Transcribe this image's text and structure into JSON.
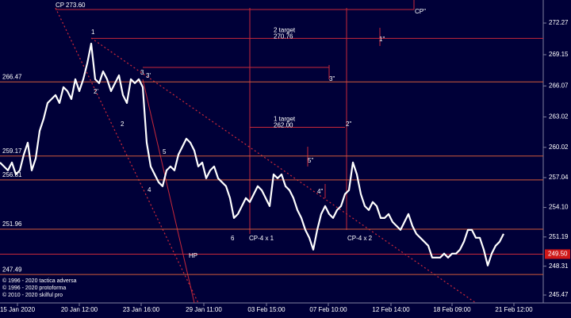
{
  "chart_data": {
    "type": "line",
    "x": [
      0,
      1,
      2,
      3,
      4,
      5,
      6,
      7,
      8,
      9,
      10,
      11,
      12,
      13,
      14,
      15,
      16,
      17,
      18,
      19,
      20,
      21,
      22,
      23,
      24,
      25,
      26,
      27,
      28,
      29,
      30,
      31,
      32,
      33,
      34,
      35,
      36,
      37,
      38,
      39,
      40,
      41,
      42,
      43,
      44,
      45,
      46,
      47,
      48,
      49,
      50,
      51,
      52,
      53,
      54,
      55,
      56,
      57,
      58,
      59,
      60,
      61,
      62,
      63,
      64,
      65,
      66,
      67,
      68,
      69,
      70,
      71,
      72,
      73,
      74,
      75,
      76,
      77,
      78,
      79,
      80,
      81,
      82,
      83,
      84,
      85,
      86,
      87,
      88,
      89,
      90,
      91,
      92,
      93,
      94,
      95,
      96,
      97,
      98,
      99,
      100,
      101,
      102,
      103,
      104,
      105,
      106,
      107,
      108,
      109,
      110,
      111,
      112,
      113,
      114,
      115,
      116,
      117,
      118,
      119,
      120,
      121,
      122,
      123,
      124,
      125,
      126,
      127
    ],
    "series": [
      {
        "color": "#ffffff",
        "values": [
          258.53,
          258.14,
          257.75,
          258.53,
          257.36,
          257.75,
          259.31,
          260.48,
          257.75,
          258.92,
          261.65,
          262.83,
          264.39,
          264.78,
          265.17,
          264.39,
          265.95,
          265.56,
          264.78,
          266.73,
          265.56,
          266.73,
          268.29,
          270.24,
          266.73,
          266.34,
          267.51,
          266.73,
          265.56,
          266.34,
          267.12,
          265.17,
          264.39,
          266.73,
          266.34,
          266.73,
          265.95,
          260.48,
          258.14,
          257.36,
          256.58,
          256.19,
          257.75,
          258.14,
          257.75,
          259.31,
          260.09,
          260.87,
          260.48,
          259.7,
          258.14,
          258.53,
          256.97,
          257.75,
          258.14,
          256.97,
          256.58,
          256.19,
          255.02,
          253.06,
          253.45,
          254.23,
          255.02,
          254.63,
          255.41,
          256.19,
          255.8,
          255.02,
          254.23,
          257.36,
          256.97,
          257.36,
          256.19,
          255.8,
          255.02,
          253.84,
          253.06,
          251.89,
          251.11,
          249.94,
          251.89,
          253.45,
          254.23,
          253.45,
          253.06,
          253.84,
          254.23,
          255.41,
          255.8,
          258.53,
          257.36,
          255.41,
          254.23,
          253.84,
          254.63,
          254.23,
          253.06,
          253.06,
          253.45,
          252.67,
          252.28,
          251.89,
          252.67,
          253.45,
          252.28,
          251.5,
          251.11,
          250.72,
          250.33,
          249.16,
          249.16,
          249.16,
          249.55,
          249.16,
          249.55,
          249.55,
          249.94,
          250.72,
          251.89,
          251.89,
          251.11,
          251.11,
          249.94,
          248.38,
          249.55,
          250.33,
          250.72,
          251.5
        ]
      }
    ],
    "xlim": [
      0,
      137
    ],
    "xticks": [
      {
        "value": 4.4,
        "label": "15 Jan 2020"
      },
      {
        "value": 20,
        "label": "20 Jan 12:00"
      },
      {
        "value": 35.6,
        "label": "23 Jan 16:00"
      },
      {
        "value": 51.4,
        "label": "29 Jan 11:00"
      },
      {
        "value": 67.2,
        "label": "03 Feb 15:00"
      },
      {
        "value": 82.8,
        "label": "07 Feb 10:00"
      },
      {
        "value": 98.6,
        "label": "12 Feb 14:00"
      },
      {
        "value": 114,
        "label": "18 Feb 09:00"
      },
      {
        "value": 129.6,
        "label": "21 Feb 12:00"
      }
    ],
    "ylim": [
      244.69,
      274.54
    ],
    "yticks": [
      272.27,
      269.15,
      266.07,
      263.02,
      260.02,
      257.04,
      {
        "value": 254.1,
        "label": "254.10"
      },
      251.19,
      248.31,
      245.47
    ],
    "levels": [
      266.47,
      259.17,
      256.81,
      251.96,
      247.49
    ],
    "current": {
      "value": 249.5,
      "label": "249.50"
    },
    "targets": [
      {
        "name": "CP",
        "value": 273.6,
        "label": "273.60"
      },
      {
        "name": "2 target",
        "value": 270.76
      },
      {
        "name": "1 target",
        "value": 262,
        "label": "262.00"
      }
    ],
    "annotations": [
      "CP\"",
      "1",
      "2'",
      "3",
      "3'",
      "2",
      "5",
      "4",
      "6",
      "HP",
      "1\"",
      "3\"",
      "2\"",
      "5\"",
      "4\"",
      "CP-4 x 1",
      "CP-4 x 2"
    ],
    "copyright": [
      "© 1996 - 2020 tactica adversa",
      "© 1996 - 2020 protoforma",
      "© 2010 - 2020 skilful pro"
    ]
  }
}
